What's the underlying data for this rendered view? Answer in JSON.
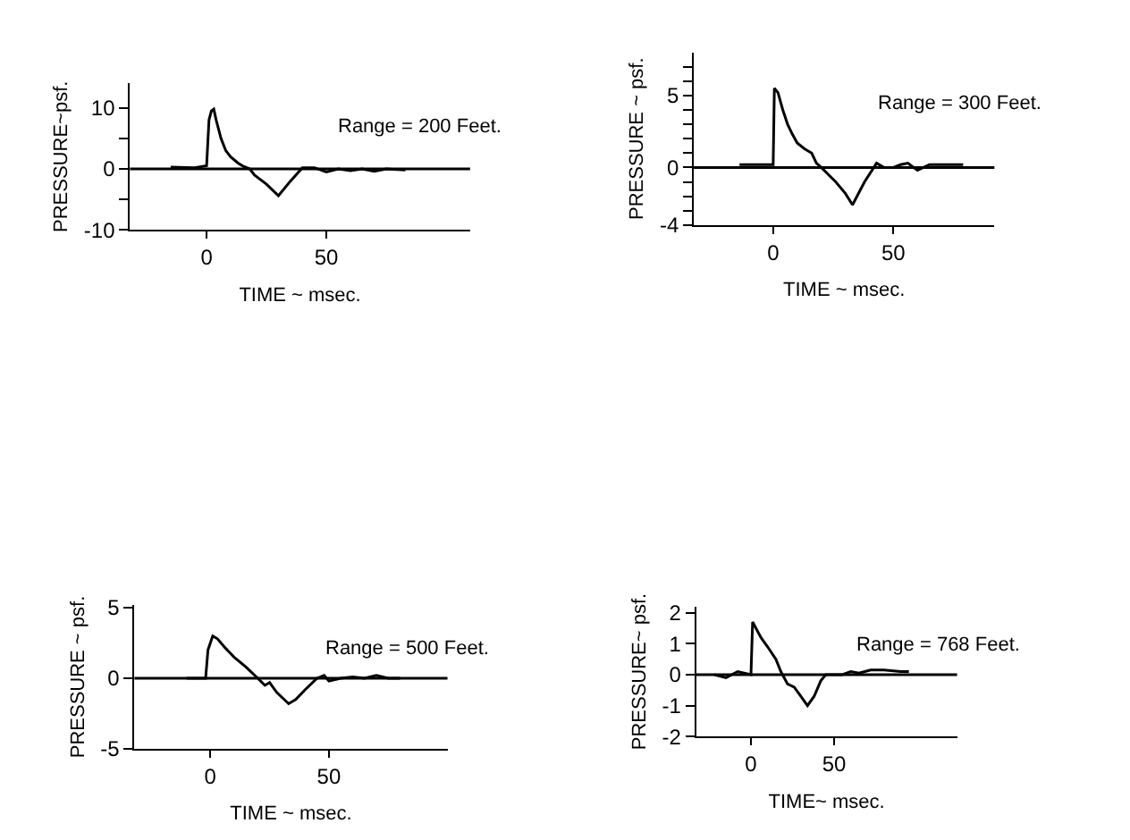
{
  "chart_data": [
    {
      "type": "line",
      "xlabel": "TIME ~ msec.",
      "ylabel": "PRESSURE~psf.",
      "annotations": [
        "Range = 200 Feet."
      ],
      "xlim": [
        -32,
        110
      ],
      "ylim": [
        -10,
        14
      ],
      "xticks": [
        0,
        50
      ],
      "yticks": [
        -10,
        {
          "value": -5,
          "label": null
        },
        0,
        {
          "value": 5,
          "label": null
        },
        10
      ],
      "grid": false,
      "ref_lines": [
        {
          "axis": "y",
          "value": 0
        }
      ],
      "series": [
        {
          "color": "#000000",
          "x": [
            -15,
            -5,
            0,
            1,
            2,
            3,
            4,
            6,
            8,
            10,
            13,
            15,
            18,
            20,
            25,
            30,
            35,
            40,
            45,
            50,
            55,
            60,
            65,
            70,
            75,
            83
          ],
          "values": [
            0.3,
            0.2,
            0.5,
            8,
            9.5,
            9.8,
            8,
            5,
            3,
            2,
            1,
            0.5,
            0,
            -1,
            -2.5,
            -4.4,
            -2,
            0.2,
            0.2,
            -0.5,
            0,
            -0.3,
            0,
            -0.4,
            0,
            -0.2
          ]
        }
      ]
    },
    {
      "type": "line",
      "xlabel": "TIME ~ msec.",
      "ylabel": "PRESSURE ~ psf.",
      "annotations": [
        "Range = 300 Feet."
      ],
      "xlim": [
        -33,
        92
      ],
      "ylim": [
        -4,
        8
      ],
      "xticks": [
        0,
        50
      ],
      "yticks": [
        -4,
        {
          "value": -3,
          "label": null
        },
        {
          "value": -2,
          "label": null
        },
        {
          "value": -1,
          "label": null
        },
        0,
        {
          "value": 1,
          "label": null
        },
        {
          "value": 2,
          "label": null
        },
        {
          "value": 3,
          "label": null
        },
        {
          "value": 4,
          "label": null
        },
        5,
        {
          "value": 6,
          "label": null
        },
        {
          "value": 7,
          "label": null
        }
      ],
      "grid": false,
      "ref_lines": [
        {
          "axis": "y",
          "value": 0
        }
      ],
      "series": [
        {
          "color": "#000000",
          "x": [
            -14,
            0,
            0.5,
            2,
            4,
            6,
            8,
            10,
            13,
            16,
            18,
            20,
            23,
            26,
            30,
            33,
            38,
            43,
            46,
            50,
            53,
            56,
            60,
            65,
            72,
            79
          ],
          "values": [
            0.2,
            0.2,
            5.5,
            5.2,
            4,
            3,
            2.3,
            1.7,
            1.3,
            1.0,
            0.3,
            0,
            -0.5,
            -1.0,
            -1.8,
            -2.6,
            -1,
            0.3,
            0,
            0,
            0.2,
            0.3,
            -0.2,
            0.2,
            0.2,
            0.2
          ]
        }
      ]
    },
    {
      "type": "line",
      "xlabel": "TIME ~ msec.",
      "ylabel": "PRESSURE ~ psf.",
      "annotations": [
        "Range = 500 Feet."
      ],
      "xlim": [
        -32,
        100
      ],
      "ylim": [
        -5,
        5.2
      ],
      "xticks": [
        0,
        50
      ],
      "yticks": [
        -5,
        0,
        5
      ],
      "grid": false,
      "ref_lines": [
        {
          "axis": "y",
          "value": 0
        }
      ],
      "series": [
        {
          "color": "#000000",
          "x": [
            -10,
            -2,
            -1,
            0,
            1,
            3,
            6,
            10,
            15,
            20,
            23,
            25,
            28,
            33,
            36,
            40,
            45,
            48,
            50,
            55,
            60,
            65,
            70,
            75,
            80
          ],
          "values": [
            0,
            0,
            2,
            2.5,
            3,
            2.8,
            2.2,
            1.5,
            0.8,
            0,
            -0.5,
            -0.3,
            -1,
            -1.8,
            -1.5,
            -0.8,
            0,
            0.2,
            -0.2,
            0,
            0.1,
            0,
            0.2,
            0,
            0
          ]
        }
      ]
    },
    {
      "type": "line",
      "xlabel": "TIME~ msec.",
      "ylabel": "PRESSURE~ psf.",
      "annotations": [
        "Range = 768 Feet."
      ],
      "xlim": [
        -33,
        124
      ],
      "ylim": [
        -2,
        2.2
      ],
      "xticks": [
        0,
        50
      ],
      "yticks": [
        -2,
        -1,
        0,
        1,
        2
      ],
      "grid": false,
      "ref_lines": [
        {
          "axis": "y",
          "value": 0
        }
      ],
      "series": [
        {
          "color": "#000000",
          "x": [
            -22,
            -15,
            -8,
            0,
            1,
            3,
            6,
            10,
            15,
            18,
            22,
            26,
            30,
            34,
            38,
            42,
            45,
            50,
            55,
            60,
            65,
            72,
            80,
            90,
            95
          ],
          "values": [
            0,
            -0.1,
            0.1,
            0,
            1.7,
            1.5,
            1.2,
            0.9,
            0.5,
            0.1,
            -0.3,
            -0.4,
            -0.7,
            -1.0,
            -0.7,
            -0.2,
            0,
            0,
            0,
            0.1,
            0.05,
            0.15,
            0.15,
            0.1,
            0.1
          ]
        }
      ]
    }
  ]
}
